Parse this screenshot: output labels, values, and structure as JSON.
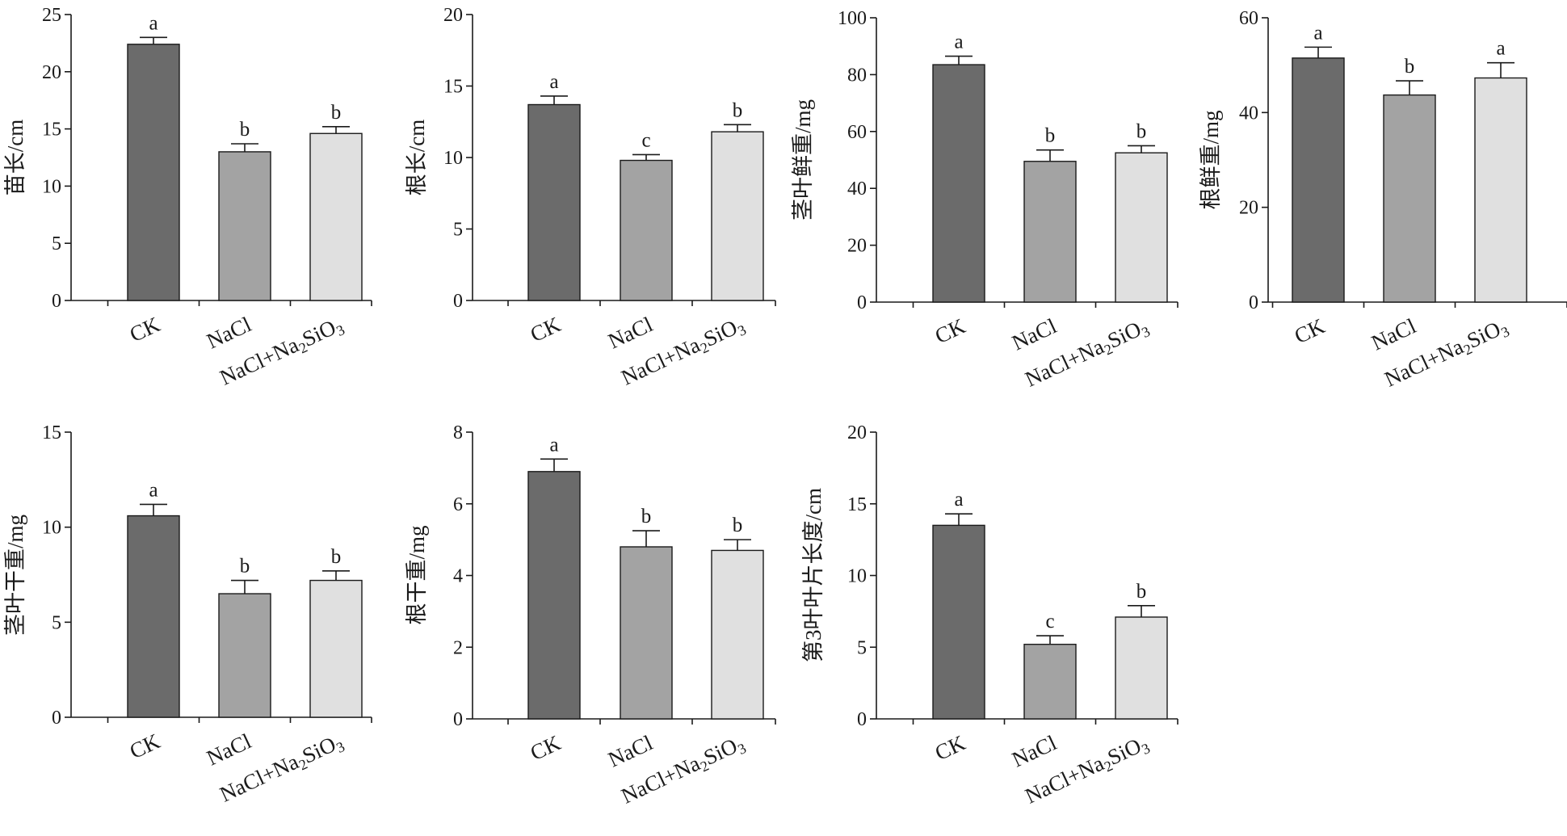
{
  "colors": {
    "CK": "#6b6b6b",
    "NaCl": "#a3a3a3",
    "NaCl+Na2SiO3": "#e0e0e0",
    "axis": "#1a1a1a"
  },
  "chart_data": [
    {
      "type": "bar",
      "ylabel": "苗长/cm",
      "ylim": [
        0,
        25
      ],
      "yticks": [
        "0",
        "5",
        "10",
        "15",
        "20",
        "25"
      ],
      "categories": [
        "CK",
        "NaCl",
        "NaCl+Na2SiO3"
      ],
      "values": [
        22.4,
        13.0,
        14.6
      ],
      "errors": [
        0.6,
        0.7,
        0.6
      ],
      "significance": [
        "a",
        "b",
        "b"
      ]
    },
    {
      "type": "bar",
      "ylabel": "根长/cm",
      "ylim": [
        0,
        20
      ],
      "yticks": [
        "0",
        "5",
        "10",
        "15",
        "20"
      ],
      "categories": [
        "CK",
        "NaCl",
        "NaCl+Na2SiO3"
      ],
      "values": [
        13.7,
        9.8,
        11.8
      ],
      "errors": [
        0.6,
        0.4,
        0.5
      ],
      "significance": [
        "a",
        "c",
        "b"
      ]
    },
    {
      "type": "bar",
      "ylabel": "茎叶鲜重/mg",
      "ylim": [
        0,
        100
      ],
      "yticks": [
        "0",
        "20",
        "40",
        "60",
        "80",
        "100"
      ],
      "categories": [
        "CK",
        "NaCl",
        "NaCl+Na2SiO3"
      ],
      "values": [
        83.5,
        49.5,
        52.5
      ],
      "errors": [
        3.0,
        4.0,
        2.5
      ],
      "significance": [
        "a",
        "b",
        "b"
      ]
    },
    {
      "type": "bar",
      "ylabel": "根鲜重/mg",
      "ylim": [
        0,
        60
      ],
      "yticks": [
        "0",
        "20",
        "40",
        "60"
      ],
      "categories": [
        "CK",
        "NaCl",
        "NaCl+Na2SiO3"
      ],
      "values": [
        51.5,
        43.7,
        47.3
      ],
      "errors": [
        2.3,
        3.0,
        3.2
      ],
      "significance": [
        "a",
        "b",
        "a"
      ]
    },
    {
      "type": "bar",
      "ylabel": "茎叶干重/mg",
      "ylim": [
        0,
        15
      ],
      "yticks": [
        "0",
        "5",
        "10",
        "15"
      ],
      "categories": [
        "CK",
        "NaCl",
        "NaCl+Na2SiO3"
      ],
      "values": [
        10.6,
        6.5,
        7.2
      ],
      "errors": [
        0.6,
        0.7,
        0.5
      ],
      "significance": [
        "a",
        "b",
        "b"
      ]
    },
    {
      "type": "bar",
      "ylabel": "根干重/mg",
      "ylim": [
        0,
        8
      ],
      "yticks": [
        "0",
        "2",
        "4",
        "6",
        "8"
      ],
      "categories": [
        "CK",
        "NaCl",
        "NaCl+Na2SiO3"
      ],
      "values": [
        6.9,
        4.8,
        4.7
      ],
      "errors": [
        0.35,
        0.45,
        0.3
      ],
      "significance": [
        "a",
        "b",
        "b"
      ]
    },
    {
      "type": "bar",
      "ylabel": "第3叶叶片长度/cm",
      "ylim": [
        0,
        20
      ],
      "yticks": [
        "0",
        "5",
        "10",
        "15",
        "20"
      ],
      "categories": [
        "CK",
        "NaCl",
        "NaCl+Na2SiO3"
      ],
      "values": [
        13.5,
        5.2,
        7.1
      ],
      "errors": [
        0.8,
        0.6,
        0.8
      ],
      "significance": [
        "a",
        "c",
        "b"
      ]
    }
  ]
}
